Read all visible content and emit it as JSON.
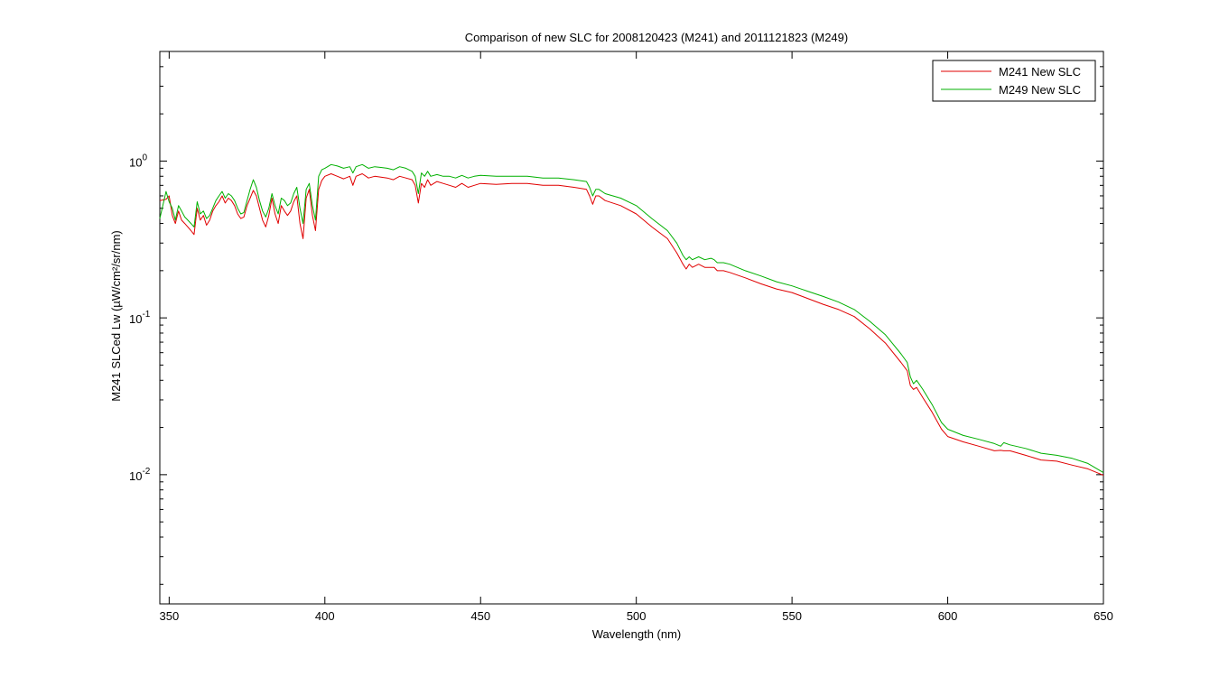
{
  "chart_data": {
    "type": "line",
    "title": "Comparison of new SLC for 2008120423  (M241)  and 2011121823  (M249)",
    "xlabel": "Wavelength (nm)",
    "ylabel": "M241 SLCed Lw (µW/cm²/sr/nm)",
    "xlim": [
      347,
      650
    ],
    "ylim": [
      0.0015,
      5
    ],
    "y_scale": "log",
    "x_ticks": [
      350,
      400,
      450,
      500,
      550,
      600,
      650
    ],
    "x_tick_labels": [
      "350",
      "400",
      "450",
      "500",
      "550",
      "600",
      "650"
    ],
    "y_ticks": [
      0.01,
      0.1,
      1
    ],
    "y_tick_labels": [
      {
        "base": "10",
        "exp": "-2"
      },
      {
        "base": "10",
        "exp": "-1"
      },
      {
        "base": "10",
        "exp": "0"
      }
    ],
    "grid": false,
    "legend_position": "top-right",
    "series": [
      {
        "name": "M241 New SLC",
        "color": "#e00000",
        "x": [
          347,
          349,
          350,
          351,
          352,
          353,
          354,
          355,
          356,
          357,
          358,
          359,
          360,
          361,
          362,
          363,
          364,
          365,
          366,
          367,
          368,
          369,
          370,
          371,
          372,
          373,
          374,
          375,
          376,
          377,
          378,
          379,
          380,
          381,
          382,
          383,
          384,
          385,
          386,
          387,
          388,
          389,
          390,
          391,
          392,
          393,
          394,
          395,
          396,
          397,
          398,
          399,
          400,
          402,
          404,
          406,
          408,
          409,
          410,
          412,
          414,
          416,
          418,
          420,
          422,
          424,
          426,
          428,
          429,
          430,
          431,
          432,
          433,
          434,
          436,
          438,
          440,
          442,
          444,
          446,
          448,
          450,
          455,
          460,
          465,
          470,
          475,
          480,
          484,
          485,
          486,
          487,
          488,
          490,
          495,
          500,
          505,
          510,
          513,
          515,
          516,
          517,
          518,
          520,
          522,
          524,
          525,
          526,
          528,
          530,
          535,
          540,
          545,
          550,
          555,
          560,
          565,
          570,
          575,
          580,
          585,
          587,
          588,
          589,
          590,
          592,
          595,
          598,
          600,
          605,
          610,
          615,
          617,
          618,
          620,
          625,
          630,
          635,
          640,
          645,
          650
        ],
        "y": [
          0.56,
          0.57,
          0.6,
          0.45,
          0.4,
          0.48,
          0.42,
          0.4,
          0.38,
          0.36,
          0.34,
          0.5,
          0.42,
          0.45,
          0.39,
          0.42,
          0.48,
          0.52,
          0.55,
          0.6,
          0.54,
          0.58,
          0.56,
          0.52,
          0.46,
          0.43,
          0.44,
          0.52,
          0.58,
          0.65,
          0.6,
          0.5,
          0.42,
          0.38,
          0.45,
          0.58,
          0.46,
          0.4,
          0.52,
          0.48,
          0.45,
          0.48,
          0.55,
          0.6,
          0.4,
          0.32,
          0.58,
          0.66,
          0.45,
          0.36,
          0.66,
          0.75,
          0.8,
          0.83,
          0.8,
          0.77,
          0.8,
          0.7,
          0.8,
          0.83,
          0.78,
          0.8,
          0.79,
          0.78,
          0.76,
          0.8,
          0.78,
          0.76,
          0.7,
          0.54,
          0.72,
          0.68,
          0.76,
          0.7,
          0.74,
          0.72,
          0.7,
          0.68,
          0.72,
          0.68,
          0.7,
          0.72,
          0.71,
          0.72,
          0.72,
          0.7,
          0.7,
          0.68,
          0.66,
          0.6,
          0.53,
          0.6,
          0.6,
          0.56,
          0.52,
          0.46,
          0.38,
          0.32,
          0.26,
          0.22,
          0.205,
          0.22,
          0.21,
          0.22,
          0.21,
          0.21,
          0.21,
          0.2,
          0.2,
          0.195,
          0.18,
          0.165,
          0.153,
          0.145,
          0.133,
          0.122,
          0.113,
          0.102,
          0.085,
          0.069,
          0.052,
          0.046,
          0.037,
          0.035,
          0.036,
          0.031,
          0.025,
          0.0195,
          0.0175,
          0.0162,
          0.0152,
          0.0142,
          0.0143,
          0.0142,
          0.0142,
          0.0133,
          0.0124,
          0.0122,
          0.0115,
          0.0109,
          0.0099
        ]
      },
      {
        "name": "M249 New SLC",
        "color": "#00b000",
        "x": [
          347,
          349,
          350,
          351,
          352,
          353,
          354,
          355,
          356,
          357,
          358,
          359,
          360,
          361,
          362,
          363,
          364,
          365,
          366,
          367,
          368,
          369,
          370,
          371,
          372,
          373,
          374,
          375,
          376,
          377,
          378,
          379,
          380,
          381,
          382,
          383,
          384,
          385,
          386,
          387,
          388,
          389,
          390,
          391,
          392,
          393,
          394,
          395,
          396,
          397,
          398,
          399,
          400,
          402,
          404,
          406,
          408,
          409,
          410,
          412,
          414,
          416,
          418,
          420,
          422,
          424,
          426,
          428,
          429,
          430,
          431,
          432,
          433,
          434,
          436,
          438,
          440,
          442,
          444,
          446,
          448,
          450,
          455,
          460,
          465,
          470,
          475,
          480,
          484,
          485,
          486,
          487,
          488,
          490,
          495,
          500,
          505,
          510,
          513,
          515,
          516,
          517,
          518,
          520,
          522,
          524,
          525,
          526,
          528,
          530,
          535,
          540,
          545,
          550,
          555,
          560,
          565,
          570,
          575,
          580,
          585,
          587,
          588,
          589,
          590,
          592,
          595,
          598,
          600,
          605,
          610,
          615,
          617,
          618,
          620,
          625,
          630,
          635,
          640,
          645,
          650
        ],
        "y": [
          0.43,
          0.64,
          0.55,
          0.5,
          0.42,
          0.52,
          0.48,
          0.44,
          0.42,
          0.4,
          0.38,
          0.55,
          0.46,
          0.48,
          0.43,
          0.45,
          0.5,
          0.56,
          0.6,
          0.64,
          0.58,
          0.62,
          0.6,
          0.56,
          0.5,
          0.46,
          0.47,
          0.56,
          0.66,
          0.76,
          0.68,
          0.56,
          0.48,
          0.44,
          0.5,
          0.62,
          0.52,
          0.46,
          0.58,
          0.56,
          0.52,
          0.54,
          0.62,
          0.68,
          0.5,
          0.4,
          0.66,
          0.72,
          0.52,
          0.42,
          0.8,
          0.88,
          0.9,
          0.95,
          0.93,
          0.9,
          0.92,
          0.84,
          0.92,
          0.95,
          0.9,
          0.92,
          0.91,
          0.9,
          0.88,
          0.92,
          0.9,
          0.86,
          0.8,
          0.62,
          0.84,
          0.8,
          0.86,
          0.8,
          0.82,
          0.8,
          0.8,
          0.78,
          0.81,
          0.78,
          0.8,
          0.81,
          0.8,
          0.8,
          0.8,
          0.78,
          0.78,
          0.76,
          0.74,
          0.68,
          0.6,
          0.66,
          0.66,
          0.62,
          0.58,
          0.52,
          0.43,
          0.36,
          0.3,
          0.25,
          0.235,
          0.245,
          0.235,
          0.245,
          0.235,
          0.24,
          0.235,
          0.225,
          0.225,
          0.22,
          0.2,
          0.185,
          0.17,
          0.16,
          0.148,
          0.137,
          0.126,
          0.113,
          0.095,
          0.078,
          0.059,
          0.052,
          0.042,
          0.038,
          0.04,
          0.035,
          0.028,
          0.0215,
          0.0195,
          0.0178,
          0.0168,
          0.0158,
          0.0152,
          0.016,
          0.0155,
          0.0147,
          0.0137,
          0.0133,
          0.0127,
          0.0118,
          0.0103
        ]
      }
    ]
  }
}
